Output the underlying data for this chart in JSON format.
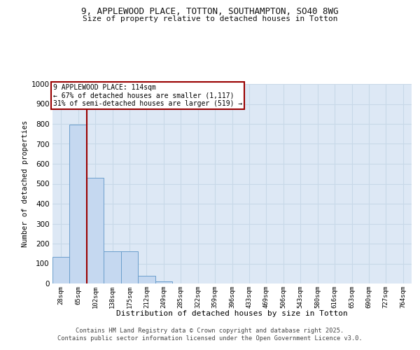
{
  "title_line1": "9, APPLEWOOD PLACE, TOTTON, SOUTHAMPTON, SO40 8WG",
  "title_line2": "Size of property relative to detached houses in Totton",
  "xlabel": "Distribution of detached houses by size in Totton",
  "ylabel": "Number of detached properties",
  "categories": [
    "28sqm",
    "65sqm",
    "102sqm",
    "138sqm",
    "175sqm",
    "212sqm",
    "249sqm",
    "285sqm",
    "322sqm",
    "359sqm",
    "396sqm",
    "433sqm",
    "469sqm",
    "506sqm",
    "543sqm",
    "580sqm",
    "616sqm",
    "653sqm",
    "690sqm",
    "727sqm",
    "764sqm"
  ],
  "values": [
    135,
    795,
    530,
    160,
    160,
    38,
    12,
    0,
    0,
    0,
    0,
    0,
    0,
    0,
    0,
    0,
    0,
    0,
    0,
    0,
    0
  ],
  "bar_color": "#c5d8f0",
  "bar_edge_color": "#6b9fcc",
  "background_color": "#dde8f5",
  "grid_color": "#c8d8e8",
  "red_line_x": 1.5,
  "annotation_text_line1": "9 APPLEWOOD PLACE: 114sqm",
  "annotation_text_line2": "← 67% of detached houses are smaller (1,117)",
  "annotation_text_line3": "31% of semi-detached houses are larger (519) →",
  "annotation_box_color": "#ffffff",
  "annotation_box_edge_color": "#990000",
  "ylim": [
    0,
    1000
  ],
  "yticks": [
    0,
    100,
    200,
    300,
    400,
    500,
    600,
    700,
    800,
    900,
    1000
  ],
  "footer_line1": "Contains HM Land Registry data © Crown copyright and database right 2025.",
  "footer_line2": "Contains public sector information licensed under the Open Government Licence v3.0.",
  "fig_bg": "#ffffff"
}
